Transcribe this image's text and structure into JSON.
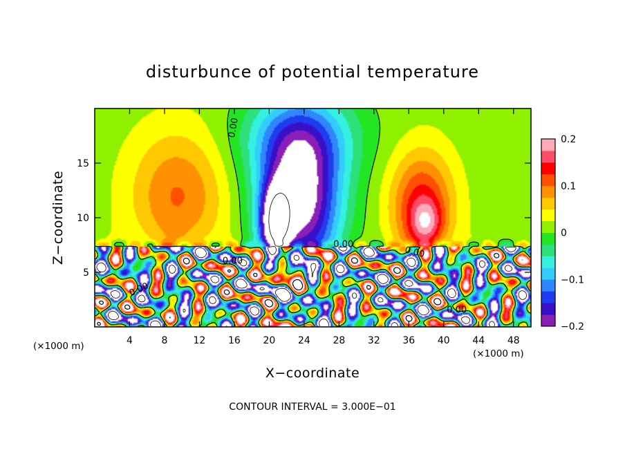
{
  "chart_data": {
    "type": "heatmap",
    "title": "disturbunce of potential temperature",
    "xlabel": "X−coordinate",
    "ylabel": "Z−coordinate",
    "x_unit": "(×1000 m)",
    "x_unit_right": "(×1000 m)",
    "xlim": [
      0,
      50
    ],
    "ylim": [
      0,
      20
    ],
    "x_ticks": [
      4,
      8,
      12,
      16,
      20,
      24,
      28,
      32,
      36,
      40,
      44,
      48
    ],
    "y_ticks": [
      5,
      10,
      15
    ],
    "colorbar": {
      "range": [
        -0.2,
        0.2
      ],
      "ticks": [
        {
          "value": 0.2,
          "label": "0.2"
        },
        {
          "value": 0.1,
          "label": "0.1"
        },
        {
          "value": 0,
          "label": "0"
        },
        {
          "value": -0.1,
          "label": "−0.1"
        },
        {
          "value": -0.2,
          "label": "−0.2"
        }
      ],
      "colors": [
        "#8a1fb8",
        "#3a0fc8",
        "#1f3cf0",
        "#2f86ff",
        "#33ccff",
        "#33f0e0",
        "#2ee07a",
        "#22e622",
        "#8ff000",
        "#ffff00",
        "#ffc800",
        "#ff9000",
        "#ff5000",
        "#ff0000",
        "#ff4a68",
        "#ffaab8"
      ]
    },
    "contour_interval_text": "CONTOUR INTERVAL = 3.000E−01",
    "contour_labels": [
      {
        "text": "0.00",
        "x": 16.2,
        "z": 18.2,
        "angle": -80
      },
      {
        "text": "0.00",
        "x": 28.5,
        "z": 7.3,
        "angle": 0
      },
      {
        "text": "0.00",
        "x": 15.8,
        "z": 5.8,
        "angle": 0
      },
      {
        "text": "0.00",
        "x": 5.2,
        "z": 3.2,
        "angle": -25
      },
      {
        "text": "0.00",
        "x": 36.6,
        "z": 6.6,
        "angle": 15
      },
      {
        "text": "0.00",
        "x": 41.5,
        "z": 1.3,
        "angle": 0
      }
    ],
    "features": [
      {
        "kind": "cold",
        "x": 23.5,
        "z": 11.5,
        "sx": 4.6,
        "sz": 6.5,
        "amp": -0.24
      },
      {
        "kind": "cold",
        "x": 23.5,
        "z": 17.5,
        "sx": 6.5,
        "sz": 4.0,
        "amp": -0.1
      },
      {
        "kind": "warm",
        "x": 9.5,
        "z": 12.0,
        "sx": 5.5,
        "sz": 6.0,
        "amp": 0.09
      },
      {
        "kind": "warm",
        "x": 37.5,
        "z": 11.0,
        "sx": 3.6,
        "sz": 5.0,
        "amp": 0.13
      },
      {
        "kind": "warm",
        "x": 38.0,
        "z": 9.5,
        "sx": 1.8,
        "sz": 2.0,
        "amp": 0.08
      }
    ]
  }
}
